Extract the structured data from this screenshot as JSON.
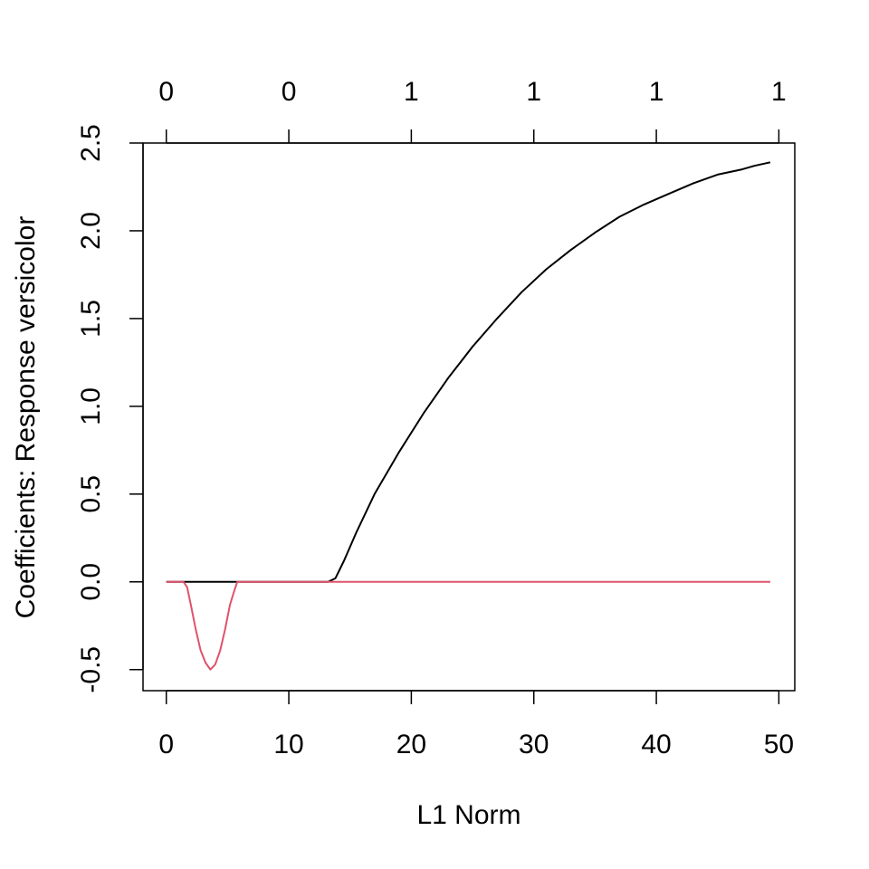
{
  "chart_data": {
    "type": "line",
    "title": "",
    "xlabel": "L1 Norm",
    "ylabel": "Coefficients: Response versicolor",
    "xlim": [
      -1.9,
      51.3
    ],
    "ylim": [
      -0.62,
      2.5
    ],
    "x_ticks": [
      0,
      10,
      20,
      30,
      40,
      50
    ],
    "x_tick_labels": [
      "0",
      "10",
      "20",
      "30",
      "40",
      "50"
    ],
    "y_ticks": [
      -0.5,
      0.0,
      0.5,
      1.0,
      1.5,
      2.0,
      2.5
    ],
    "y_tick_labels": [
      "-0.5",
      "0.0",
      "0.5",
      "1.0",
      "1.5",
      "2.0",
      "2.5"
    ],
    "top_ticks": [
      0,
      10,
      20,
      30,
      40,
      50
    ],
    "top_tick_labels": [
      "0",
      "0",
      "1",
      "1",
      "1",
      "1"
    ],
    "grid": false,
    "legend": "none",
    "series": [
      {
        "color": "#000000",
        "x": [
          0,
          13.2,
          13.8,
          14.5,
          15.5,
          17,
          19,
          21,
          23,
          25,
          27,
          29,
          31,
          33,
          35,
          37,
          39,
          41,
          43,
          45,
          47,
          48,
          49.3
        ],
        "y": [
          0,
          0,
          0.02,
          0.12,
          0.28,
          0.5,
          0.74,
          0.96,
          1.16,
          1.34,
          1.5,
          1.65,
          1.78,
          1.89,
          1.99,
          2.08,
          2.15,
          2.21,
          2.27,
          2.32,
          2.35,
          2.37,
          2.39
        ]
      },
      {
        "color": "#DF536B",
        "x": [
          0,
          1.4,
          1.7,
          2.0,
          2.4,
          2.8,
          3.2,
          3.6,
          4.0,
          4.4,
          4.8,
          5.2,
          5.6,
          5.8,
          13.2,
          49.3
        ],
        "y": [
          0,
          0,
          -0.03,
          -0.13,
          -0.27,
          -0.39,
          -0.46,
          -0.5,
          -0.47,
          -0.39,
          -0.27,
          -0.13,
          -0.04,
          0,
          0,
          0
        ]
      }
    ]
  }
}
